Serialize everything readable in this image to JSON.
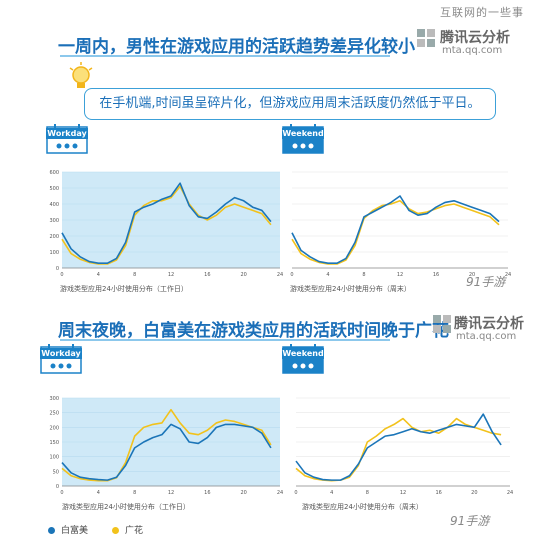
{
  "watermark": "互联网的一些事",
  "brand": {
    "name": "腾讯云分析",
    "url": "mta.qq.com",
    "site": "91手游"
  },
  "legend": {
    "items": [
      {
        "label": "白富美",
        "color": "#1b75b8"
      },
      {
        "label": "广花",
        "color": "#f2c21b"
      }
    ]
  },
  "sections": [
    {
      "title": "一周内，男性在游戏应用的活跃趋势差异化较小",
      "callout": "在手机端,时间虽呈碎片化，但游戏应用周末活跃度仍然低于平日。"
    },
    {
      "title": "周末夜晚，白富美在游戏类应用的活跃时间晚于广花"
    }
  ],
  "chart_data": [
    {
      "type": "line",
      "badge": "Workday",
      "caption": "游戏类型应用24小时使用分布（工作日）",
      "x": [
        0,
        1,
        2,
        3,
        4,
        5,
        6,
        7,
        8,
        9,
        10,
        11,
        12,
        13,
        14,
        15,
        16,
        17,
        18,
        19,
        20,
        21,
        22,
        23
      ],
      "x_ticks": [
        0,
        4,
        8,
        12,
        16,
        20,
        24
      ],
      "y_ticks": [
        0,
        100,
        200,
        300,
        400,
        500,
        600
      ],
      "ylim": [
        0,
        600
      ],
      "xlim": [
        0,
        24
      ],
      "series": [
        {
          "name": "白富美",
          "color": "#1b75b8",
          "values": [
            220,
            120,
            70,
            40,
            30,
            30,
            60,
            160,
            350,
            380,
            400,
            430,
            450,
            530,
            390,
            320,
            310,
            350,
            400,
            440,
            420,
            380,
            360,
            290
          ]
        },
        {
          "name": "广花",
          "color": "#f2c21b",
          "values": [
            180,
            90,
            55,
            35,
            25,
            25,
            50,
            140,
            330,
            390,
            420,
            420,
            440,
            510,
            400,
            330,
            300,
            330,
            380,
            400,
            380,
            360,
            340,
            270
          ]
        }
      ]
    },
    {
      "type": "line",
      "badge": "Weekend",
      "caption": "游戏类型应用24小时使用分布（周末）",
      "x": [
        0,
        1,
        2,
        3,
        4,
        5,
        6,
        7,
        8,
        9,
        10,
        11,
        12,
        13,
        14,
        15,
        16,
        17,
        18,
        19,
        20,
        21,
        22,
        23
      ],
      "x_ticks": [
        0,
        4,
        8,
        12,
        16,
        20,
        24
      ],
      "y_ticks": [
        0,
        100,
        200,
        300,
        400,
        500,
        600
      ],
      "ylim": [
        0,
        600
      ],
      "xlim": [
        0,
        24
      ],
      "series": [
        {
          "name": "白富美",
          "color": "#1b75b8",
          "values": [
            220,
            110,
            70,
            40,
            30,
            30,
            60,
            160,
            320,
            350,
            380,
            410,
            450,
            360,
            330,
            340,
            380,
            410,
            420,
            400,
            380,
            360,
            340,
            290
          ]
        },
        {
          "name": "广花",
          "color": "#f2c21b",
          "values": [
            180,
            90,
            55,
            35,
            25,
            25,
            50,
            140,
            310,
            360,
            390,
            400,
            420,
            370,
            340,
            350,
            370,
            390,
            400,
            380,
            360,
            340,
            320,
            270
          ]
        }
      ]
    },
    {
      "type": "line",
      "badge": "Workday",
      "caption": "游戏类型应用24小时使用分布（工作日）",
      "x": [
        0,
        1,
        2,
        3,
        4,
        5,
        6,
        7,
        8,
        9,
        10,
        11,
        12,
        13,
        14,
        15,
        16,
        17,
        18,
        19,
        20,
        21,
        22,
        23
      ],
      "x_ticks": [
        0,
        4,
        8,
        12,
        16,
        20,
        24
      ],
      "y_ticks": [
        0,
        50,
        100,
        150,
        200,
        250,
        300
      ],
      "ylim": [
        0,
        300
      ],
      "xlim": [
        0,
        24
      ],
      "series": [
        {
          "name": "白富美",
          "color": "#1b75b8",
          "values": [
            80,
            45,
            30,
            25,
            22,
            20,
            30,
            70,
            130,
            150,
            165,
            175,
            210,
            195,
            150,
            145,
            165,
            200,
            210,
            210,
            205,
            200,
            180,
            130
          ]
        },
        {
          "name": "广花",
          "color": "#f2c21b",
          "values": [
            60,
            35,
            25,
            20,
            18,
            18,
            28,
            80,
            170,
            200,
            210,
            215,
            260,
            215,
            180,
            175,
            190,
            215,
            225,
            220,
            210,
            200,
            190,
            140
          ]
        }
      ]
    },
    {
      "type": "line",
      "badge": "Weekend",
      "caption": "游戏类型应用24小时使用分布（周末）",
      "x": [
        0,
        1,
        2,
        3,
        4,
        5,
        6,
        7,
        8,
        9,
        10,
        11,
        12,
        13,
        14,
        15,
        16,
        17,
        18,
        19,
        20,
        21,
        22,
        23
      ],
      "x_ticks": [
        0,
        4,
        8,
        12,
        16,
        20,
        24
      ],
      "y_ticks": [
        0,
        50,
        100,
        150,
        200,
        250,
        300
      ],
      "ylim": [
        0,
        300
      ],
      "xlim": [
        0,
        24
      ],
      "series": [
        {
          "name": "白富美",
          "color": "#1b75b8",
          "values": [
            85,
            45,
            30,
            22,
            20,
            20,
            35,
            75,
            130,
            150,
            170,
            175,
            185,
            195,
            185,
            180,
            190,
            200,
            210,
            205,
            200,
            245,
            185,
            140
          ]
        },
        {
          "name": "广花",
          "color": "#f2c21b",
          "values": [
            60,
            35,
            25,
            20,
            18,
            20,
            30,
            70,
            150,
            170,
            195,
            210,
            230,
            200,
            185,
            190,
            180,
            200,
            230,
            210,
            200,
            190,
            180,
            175
          ]
        }
      ]
    }
  ]
}
